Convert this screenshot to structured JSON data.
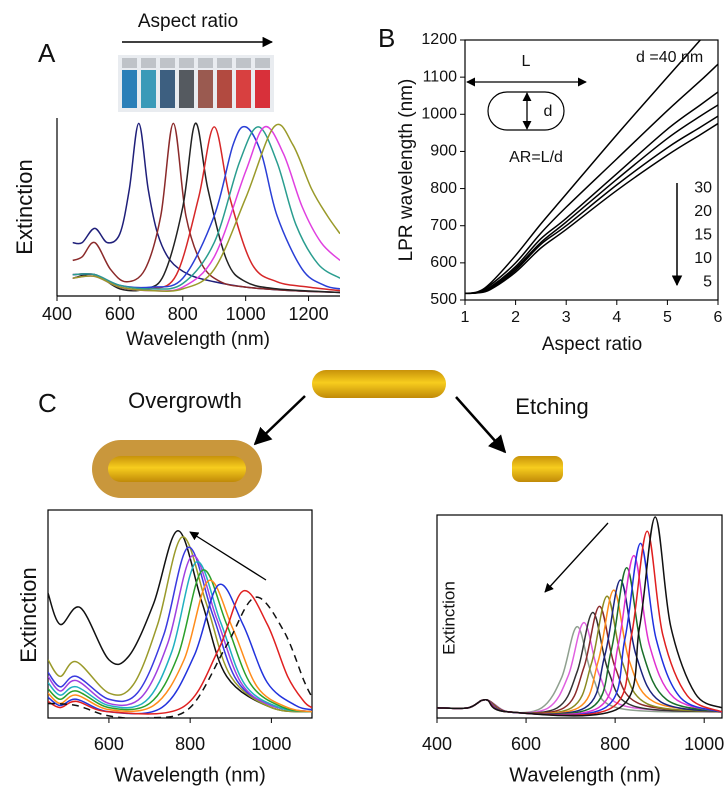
{
  "chart_data": [
    {
      "type": "line",
      "panel": "A",
      "annotation": "Aspect ratio",
      "xlabel": "Wavelength (nm)",
      "ylabel": "Extinction",
      "xlim": [
        400,
        1300
      ],
      "xticks": [
        400,
        600,
        800,
        1000,
        1200
      ],
      "ylim": [
        0,
        1
      ],
      "series": [
        {
          "color": "#1f1f7a",
          "x": [
            450,
            480,
            520,
            560,
            600,
            630,
            660,
            690,
            720,
            760,
            820,
            900,
            1000,
            1150,
            1300
          ],
          "values": [
            0.3,
            0.3,
            0.38,
            0.3,
            0.35,
            0.6,
            0.97,
            0.6,
            0.35,
            0.2,
            0.12,
            0.08,
            0.05,
            0.03,
            0.02
          ]
        },
        {
          "color": "#8b2a2a",
          "x": [
            450,
            480,
            520,
            570,
            620,
            680,
            730,
            770,
            810,
            860,
            920,
            1000,
            1150,
            1300
          ],
          "values": [
            0.2,
            0.22,
            0.3,
            0.15,
            0.08,
            0.15,
            0.45,
            0.97,
            0.45,
            0.18,
            0.08,
            0.05,
            0.03,
            0.02
          ]
        },
        {
          "color": "#222222",
          "x": [
            450,
            520,
            600,
            680,
            740,
            800,
            840,
            880,
            940,
            1000,
            1100,
            1300
          ],
          "values": [
            0.1,
            0.12,
            0.04,
            0.04,
            0.12,
            0.5,
            0.97,
            0.6,
            0.2,
            0.08,
            0.04,
            0.02
          ]
        },
        {
          "color": "#d62728",
          "x": [
            450,
            520,
            600,
            700,
            780,
            850,
            900,
            950,
            1020,
            1100,
            1200,
            1300
          ],
          "values": [
            0.12,
            0.12,
            0.05,
            0.04,
            0.12,
            0.55,
            0.95,
            0.55,
            0.18,
            0.08,
            0.05,
            0.03
          ]
        },
        {
          "color": "#2a3fd6",
          "x": [
            450,
            520,
            600,
            700,
            800,
            900,
            960,
            1000,
            1050,
            1100,
            1180,
            1250,
            1300
          ],
          "values": [
            0.12,
            0.12,
            0.06,
            0.05,
            0.1,
            0.45,
            0.85,
            0.95,
            0.8,
            0.45,
            0.15,
            0.06,
            0.04
          ]
        },
        {
          "color": "#2a9d8f",
          "x": [
            450,
            520,
            600,
            700,
            800,
            900,
            980,
            1040,
            1100,
            1160,
            1230,
            1300
          ],
          "values": [
            0.12,
            0.12,
            0.06,
            0.04,
            0.07,
            0.3,
            0.75,
            0.95,
            0.75,
            0.4,
            0.18,
            0.1
          ]
        },
        {
          "color": "#e040e0",
          "x": [
            450,
            520,
            600,
            700,
            800,
            900,
            1000,
            1060,
            1120,
            1180,
            1240,
            1300
          ],
          "values": [
            0.1,
            0.11,
            0.05,
            0.03,
            0.05,
            0.22,
            0.7,
            0.95,
            0.8,
            0.5,
            0.3,
            0.2
          ]
        },
        {
          "color": "#9a9a2a",
          "x": [
            450,
            520,
            600,
            700,
            800,
            900,
            1000,
            1090,
            1150,
            1210,
            1260,
            1300
          ],
          "values": [
            0.1,
            0.11,
            0.05,
            0.03,
            0.04,
            0.15,
            0.55,
            0.95,
            0.85,
            0.6,
            0.45,
            0.35
          ]
        }
      ]
    },
    {
      "type": "line",
      "panel": "B",
      "xlabel": "Aspect ratio",
      "ylabel": "LPR wavelength (nm)",
      "annotations": [
        "L",
        "d",
        "AR=L/d"
      ],
      "x": [
        1,
        1.25,
        1.5,
        2,
        2.5,
        3,
        4,
        5,
        5.65,
        6
      ],
      "xlim": [
        1,
        6
      ],
      "xticks": [
        1,
        2,
        3,
        4,
        5,
        6
      ],
      "ylim": [
        500,
        1200
      ],
      "yticks": [
        500,
        600,
        700,
        800,
        900,
        1000,
        1100,
        1200
      ],
      "series": [
        {
          "name": "d =40 nm",
          "color": "#000000",
          "values": [
            518,
            522,
            545,
            620,
            705,
            785,
            945,
            1100,
            1200,
            null
          ]
        },
        {
          "name": "30",
          "color": "#000000",
          "values": [
            518,
            520,
            540,
            600,
            680,
            750,
            880,
            1010,
            1090,
            1135
          ]
        },
        {
          "name": "20",
          "color": "#000000",
          "values": [
            518,
            520,
            535,
            590,
            665,
            720,
            840,
            960,
            1025,
            1060
          ]
        },
        {
          "name": "15",
          "color": "#000000",
          "values": [
            518,
            520,
            532,
            585,
            655,
            710,
            825,
            935,
            995,
            1025
          ]
        },
        {
          "name": "10",
          "color": "#000000",
          "values": [
            518,
            520,
            530,
            580,
            650,
            700,
            810,
            910,
            965,
            995
          ]
        },
        {
          "name": "5",
          "color": "#000000",
          "values": [
            518,
            519,
            528,
            575,
            640,
            690,
            795,
            890,
            945,
            975
          ]
        }
      ]
    },
    {
      "type": "line",
      "xlabel": "Wavelength (nm)",
      "ylabel": "Extinction",
      "xlim": [
        450,
        1100
      ],
      "xticks": [
        600,
        800,
        1000
      ],
      "ylim": [
        0,
        1
      ],
      "series": [
        {
          "color": "#111111",
          "x": [
            450,
            480,
            530,
            600,
            650,
            710,
            770,
            830,
            890,
            1000,
            1100
          ],
          "values": [
            0.6,
            0.45,
            0.53,
            0.28,
            0.3,
            0.55,
            0.9,
            0.55,
            0.2,
            0.05,
            0.03
          ]
        },
        {
          "color": "#9a9a2a",
          "x": [
            450,
            480,
            520,
            600,
            660,
            720,
            780,
            840,
            900,
            1000,
            1100
          ],
          "values": [
            0.28,
            0.2,
            0.27,
            0.12,
            0.16,
            0.45,
            0.87,
            0.55,
            0.2,
            0.05,
            0.03
          ]
        },
        {
          "color": "#3a3ae0",
          "x": [
            450,
            480,
            520,
            600,
            670,
            735,
            795,
            855,
            915,
            1000,
            1100
          ],
          "values": [
            0.22,
            0.15,
            0.2,
            0.09,
            0.12,
            0.4,
            0.82,
            0.5,
            0.18,
            0.06,
            0.03
          ]
        },
        {
          "color": "#a040e0",
          "x": [
            450,
            480,
            520,
            600,
            680,
            745,
            805,
            865,
            925,
            1000,
            1100
          ],
          "values": [
            0.2,
            0.13,
            0.18,
            0.07,
            0.1,
            0.36,
            0.78,
            0.48,
            0.17,
            0.06,
            0.03
          ]
        },
        {
          "color": "#20b0c0",
          "x": [
            450,
            480,
            520,
            600,
            690,
            755,
            815,
            875,
            935,
            1020,
            1100
          ],
          "values": [
            0.17,
            0.11,
            0.15,
            0.06,
            0.08,
            0.32,
            0.75,
            0.46,
            0.16,
            0.05,
            0.03
          ]
        },
        {
          "color": "#2aa02a",
          "x": [
            450,
            480,
            520,
            600,
            700,
            770,
            830,
            890,
            950,
            1030,
            1100
          ],
          "values": [
            0.14,
            0.09,
            0.13,
            0.05,
            0.07,
            0.3,
            0.71,
            0.45,
            0.16,
            0.05,
            0.03
          ]
        },
        {
          "color": "#ff8c1a",
          "x": [
            450,
            480,
            520,
            600,
            710,
            785,
            845,
            905,
            965,
            1040,
            1100
          ],
          "values": [
            0.12,
            0.07,
            0.11,
            0.04,
            0.06,
            0.28,
            0.66,
            0.43,
            0.15,
            0.05,
            0.03
          ]
        },
        {
          "color": "#2233dd",
          "x": [
            450,
            480,
            520,
            600,
            730,
            810,
            870,
            930,
            990,
            1060,
            1100
          ],
          "values": [
            0.1,
            0.06,
            0.09,
            0.03,
            0.05,
            0.3,
            0.64,
            0.45,
            0.17,
            0.06,
            0.04
          ]
        },
        {
          "color": "#e02020",
          "x": [
            450,
            480,
            520,
            600,
            780,
            870,
            930,
            990,
            1040,
            1080,
            1100
          ],
          "values": [
            0.08,
            0.05,
            0.08,
            0.03,
            0.05,
            0.33,
            0.61,
            0.45,
            0.2,
            0.08,
            0.05
          ]
        },
        {
          "color": "#111111",
          "dash": true,
          "x": [
            450,
            520,
            600,
            700,
            800,
            890,
            960,
            1030,
            1080,
            1100
          ],
          "values": [
            0.07,
            0.06,
            0.01,
            0.0,
            0.05,
            0.35,
            0.58,
            0.42,
            0.18,
            0.1
          ]
        }
      ]
    },
    {
      "type": "line",
      "xlabel": "Wavelength (nm)",
      "ylabel": "Extinction",
      "xlim": [
        400,
        1040
      ],
      "xticks": [
        400,
        600,
        800,
        1000
      ],
      "ylim": [
        0,
        1
      ],
      "series": [
        {
          "color": "#8fa08f",
          "x": [
            400,
            470,
            510,
            560,
            635,
            680,
            715,
            750,
            805,
            1040
          ],
          "values": [
            0.05,
            0.05,
            0.09,
            0.03,
            0.05,
            0.2,
            0.45,
            0.2,
            0.05,
            0.03
          ]
        },
        {
          "color": "#e060e0",
          "x": [
            400,
            470,
            510,
            560,
            650,
            695,
            730,
            765,
            820,
            1040
          ],
          "values": [
            0.05,
            0.05,
            0.09,
            0.03,
            0.05,
            0.21,
            0.47,
            0.21,
            0.06,
            0.03
          ]
        },
        {
          "color": "#333333",
          "x": [
            400,
            470,
            510,
            560,
            670,
            715,
            750,
            785,
            840,
            1040
          ],
          "values": [
            0.05,
            0.05,
            0.09,
            0.03,
            0.05,
            0.23,
            0.52,
            0.23,
            0.06,
            0.03
          ]
        },
        {
          "color": "#8b2a2a",
          "x": [
            400,
            470,
            510,
            560,
            685,
            730,
            765,
            800,
            855,
            1040
          ],
          "values": [
            0.05,
            0.05,
            0.09,
            0.03,
            0.05,
            0.25,
            0.55,
            0.25,
            0.07,
            0.03
          ]
        },
        {
          "color": "#8a8a20",
          "x": [
            400,
            470,
            510,
            560,
            702,
            747,
            782,
            817,
            872,
            1040
          ],
          "values": [
            0.05,
            0.05,
            0.09,
            0.03,
            0.05,
            0.27,
            0.6,
            0.27,
            0.07,
            0.03
          ]
        },
        {
          "color": "#ff8c1a",
          "x": [
            400,
            470,
            510,
            560,
            717,
            762,
            797,
            832,
            887,
            1040
          ],
          "values": [
            0.05,
            0.05,
            0.09,
            0.03,
            0.05,
            0.28,
            0.63,
            0.28,
            0.08,
            0.03
          ]
        },
        {
          "color": "#1a237e",
          "x": [
            400,
            470,
            510,
            560,
            732,
            777,
            812,
            847,
            902,
            1040
          ],
          "values": [
            0.05,
            0.05,
            0.09,
            0.03,
            0.05,
            0.31,
            0.68,
            0.31,
            0.08,
            0.03
          ]
        },
        {
          "color": "#1a6e2a",
          "x": [
            400,
            470,
            510,
            560,
            746,
            791,
            826,
            861,
            916,
            1040
          ],
          "values": [
            0.05,
            0.05,
            0.09,
            0.03,
            0.05,
            0.33,
            0.74,
            0.33,
            0.09,
            0.03
          ]
        },
        {
          "color": "#e030d0",
          "x": [
            400,
            470,
            510,
            560,
            762,
            807,
            842,
            877,
            932,
            1040
          ],
          "values": [
            0.05,
            0.05,
            0.09,
            0.03,
            0.05,
            0.36,
            0.8,
            0.36,
            0.1,
            0.03
          ]
        },
        {
          "color": "#2030e0",
          "x": [
            400,
            470,
            510,
            560,
            777,
            822,
            857,
            892,
            947,
            1040
          ],
          "values": [
            0.05,
            0.05,
            0.09,
            0.03,
            0.05,
            0.39,
            0.86,
            0.39,
            0.1,
            0.03
          ]
        },
        {
          "color": "#e02020",
          "x": [
            400,
            470,
            510,
            560,
            792,
            837,
            872,
            907,
            962,
            1040
          ],
          "values": [
            0.05,
            0.05,
            0.09,
            0.03,
            0.05,
            0.41,
            0.92,
            0.41,
            0.11,
            0.03
          ]
        },
        {
          "color": "#111111",
          "x": [
            400,
            470,
            510,
            560,
            810,
            855,
            890,
            925,
            980,
            1040
          ],
          "values": [
            0.05,
            0.05,
            0.09,
            0.03,
            0.05,
            0.45,
            0.99,
            0.45,
            0.12,
            0.05
          ]
        }
      ]
    }
  ],
  "scheme": {
    "panel": "C",
    "left": "Overgrowth",
    "right": "Etching"
  }
}
